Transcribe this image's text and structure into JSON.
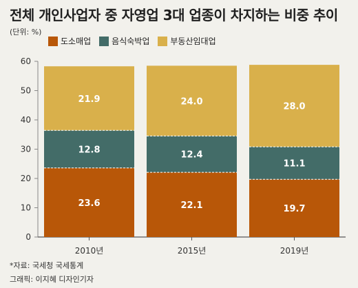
{
  "title": "전체 개인사업자 중 자영업 3대 업종이 차지하는 비중 추이",
  "unit_label": "(단위: %)",
  "colors": {
    "retail": "#b85708",
    "food": "#436c68",
    "realestate": "#d9b04b",
    "axis": "#888888",
    "grid": "#cfcfcf"
  },
  "legend": [
    {
      "label": "도소매업",
      "color": "#b85708"
    },
    {
      "label": "음식숙박업",
      "color": "#436c68"
    },
    {
      "label": "부동산임대업",
      "color": "#d9b04b"
    }
  ],
  "footer": {
    "source": "*자료: 국세청 국세통계",
    "credit": "그래픽: 이지혜 디자인기자"
  },
  "chart_data": {
    "type": "bar",
    "stacked": true,
    "categories": [
      "2010년",
      "2015년",
      "2019년"
    ],
    "series": [
      {
        "name": "도소매업",
        "values": [
          23.6,
          22.1,
          19.7
        ]
      },
      {
        "name": "음식숙박업",
        "values": [
          12.8,
          12.4,
          11.1
        ]
      },
      {
        "name": "부동산임대업",
        "values": [
          21.9,
          24.0,
          28.0
        ]
      }
    ],
    "ylim": [
      0,
      60
    ],
    "yticks": [
      0,
      10,
      20,
      30,
      40,
      50,
      60
    ],
    "grid": false,
    "legend_position": "top-left"
  }
}
